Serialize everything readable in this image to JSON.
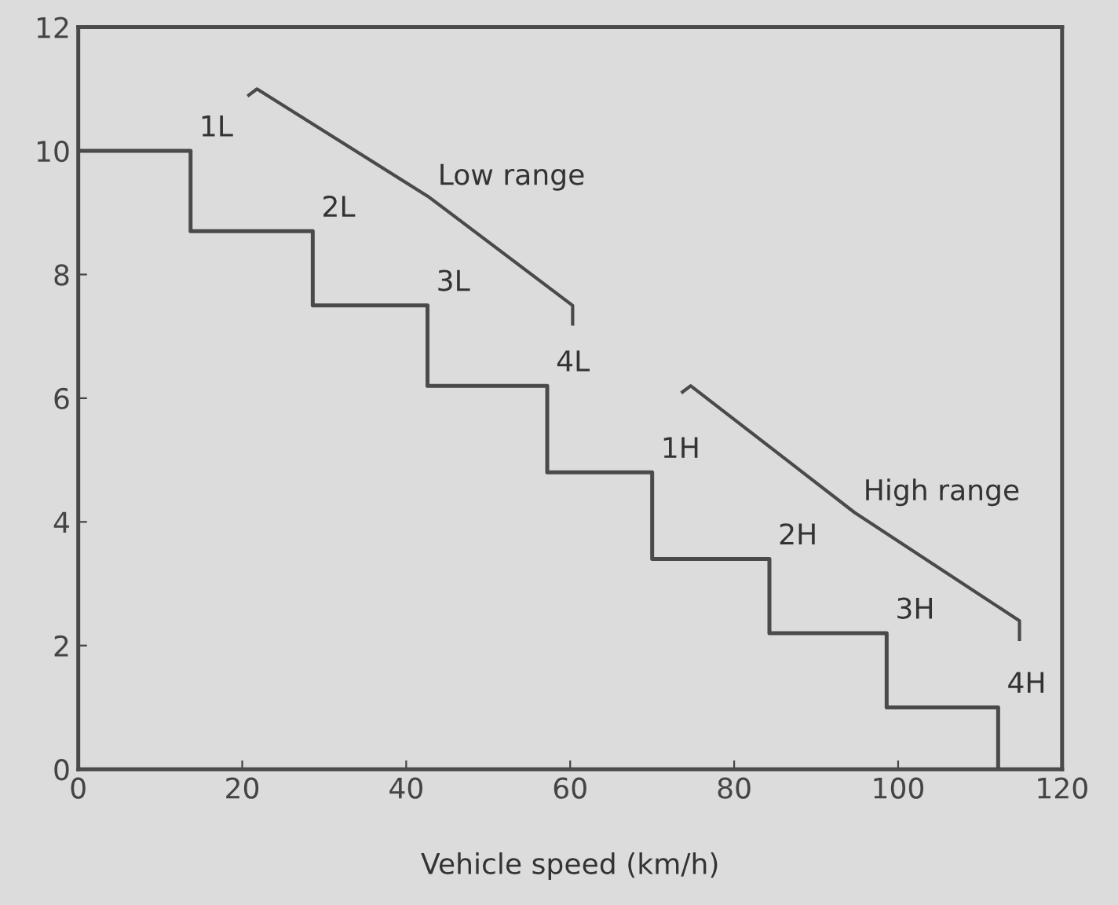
{
  "chart_data": {
    "type": "step",
    "xlabel": "Vehicle speed (km/h)",
    "xlim": [
      0,
      120
    ],
    "xticks": [
      0,
      20,
      40,
      60,
      80,
      100,
      120
    ],
    "ylim": [
      0,
      12
    ],
    "yticks": [
      0,
      2,
      4,
      6,
      8,
      10,
      12
    ],
    "grid": false,
    "marker": "none",
    "line_style": "solid",
    "series": [
      {
        "color": "#4a4a4a",
        "x": [
          0,
          13.7,
          28.6,
          42.6,
          57.2,
          70,
          84.3,
          98.6,
          112.2
        ],
        "values": [
          10,
          8.7,
          7.5,
          6.2,
          4.8,
          3.4,
          2.2,
          1.0,
          0
        ]
      },
      {
        "type": "line",
        "name": "Low range",
        "color": "#4a4a4a",
        "x": [
          20.8,
          21.8,
          42.8,
          60.3,
          60.3
        ],
        "values": [
          10.9,
          11.0,
          9.25,
          7.5,
          7.2
        ]
      },
      {
        "type": "line",
        "name": "High range",
        "color": "#4a4a4a",
        "x": [
          73.7,
          74.7,
          94.7,
          114.8,
          114.8
        ],
        "values": [
          6.1,
          6.2,
          4.15,
          2.4,
          2.1
        ]
      }
    ],
    "annotations": [
      "1L",
      "2L",
      "3L",
      "4L",
      "1H",
      "2H",
      "3H",
      "4H"
    ]
  }
}
